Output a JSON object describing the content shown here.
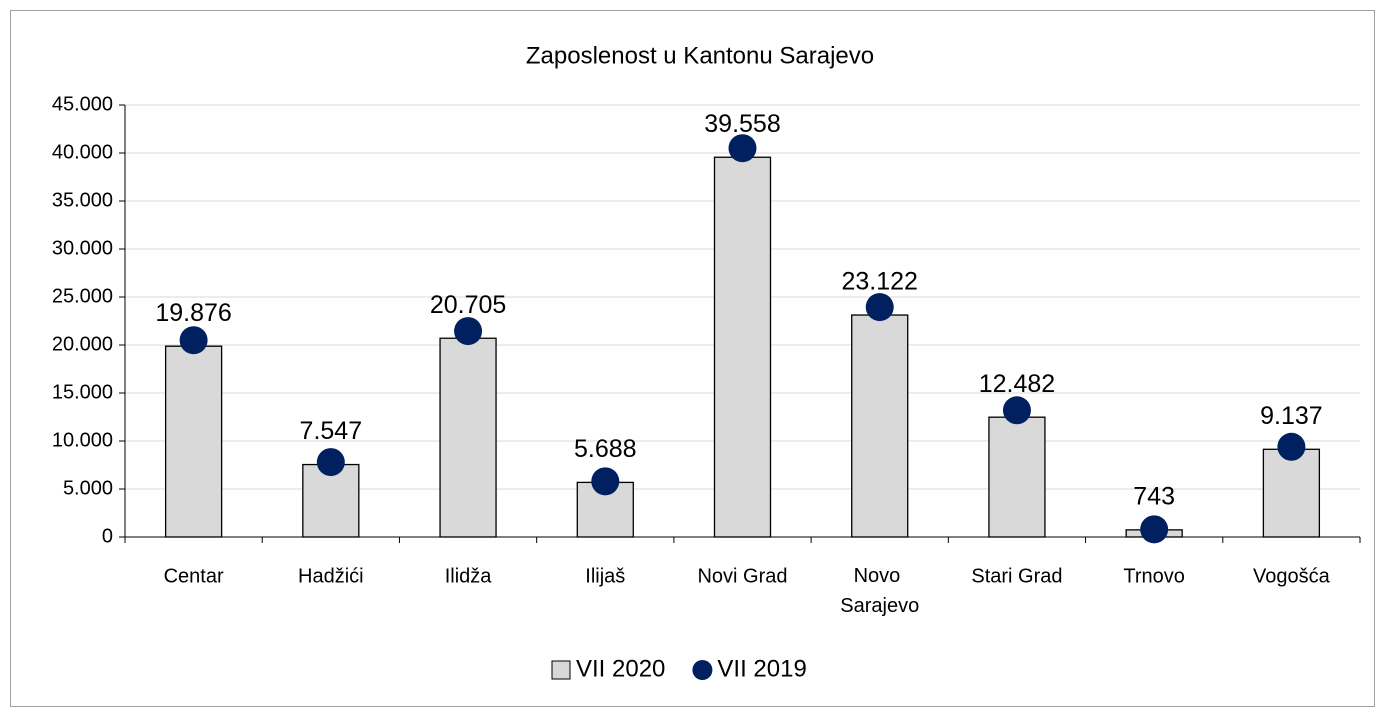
{
  "chart_data": {
    "type": "bar",
    "title": "Zaposlenost u Kantonu Sarajevo",
    "categories": [
      "Centar",
      "Hadžići",
      "Ilidža",
      "Ilijaš",
      "Novi Grad",
      "Novo Sarajevo",
      "Stari Grad",
      "Trnovo",
      "Vogošća"
    ],
    "series": [
      {
        "name": "VII 2020",
        "type": "bar",
        "color": "#d9d9d9",
        "values": [
          19876,
          7547,
          20705,
          5688,
          39558,
          23122,
          12482,
          743,
          9137
        ],
        "value_labels": [
          "19.876",
          "7.547",
          "20.705",
          "5.688",
          "39.558",
          "23.122",
          "12.482",
          "743",
          "9.137"
        ]
      },
      {
        "name": "VII 2019",
        "type": "scatter",
        "color": "#002060",
        "values": [
          20500,
          7800,
          21450,
          5800,
          40500,
          23950,
          13200,
          800,
          9400
        ]
      }
    ],
    "ylim": [
      0,
      45000
    ],
    "yticks": [
      0,
      {
        "value": 5000,
        "label": "5.000"
      },
      {
        "value": 10000,
        "label": "10.000"
      },
      {
        "value": 15000,
        "label": "15.000"
      },
      {
        "value": 20000,
        "label": "20.000"
      },
      {
        "value": 25000,
        "label": "25.000"
      },
      {
        "value": 30000,
        "label": "30.000"
      },
      {
        "value": 35000,
        "label": "35.000"
      },
      {
        "value": 40000,
        "label": "40.000"
      },
      {
        "value": 45000,
        "label": "45.000"
      }
    ],
    "grid": true,
    "legend": "bottom"
  }
}
